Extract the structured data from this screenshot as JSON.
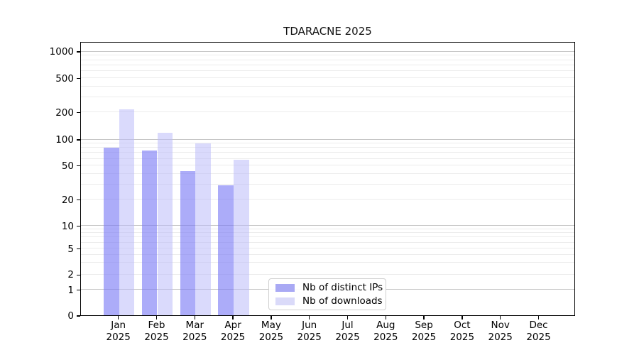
{
  "title": "TDARACNE 2025",
  "chart_data": {
    "type": "bar",
    "title": "TDARACNE 2025",
    "xlabel": "",
    "ylabel": "",
    "categories": [
      {
        "month": "Jan",
        "year": "2025"
      },
      {
        "month": "Feb",
        "year": "2025"
      },
      {
        "month": "Mar",
        "year": "2025"
      },
      {
        "month": "Apr",
        "year": "2025"
      },
      {
        "month": "May",
        "year": "2025"
      },
      {
        "month": "Jun",
        "year": "2025"
      },
      {
        "month": "Jul",
        "year": "2025"
      },
      {
        "month": "Aug",
        "year": "2025"
      },
      {
        "month": "Sep",
        "year": "2025"
      },
      {
        "month": "Oct",
        "year": "2025"
      },
      {
        "month": "Nov",
        "year": "2025"
      },
      {
        "month": "Dec",
        "year": "2025"
      }
    ],
    "series": [
      {
        "name": "Nb of distinct IPs",
        "color": "#a9a9f4",
        "fill": "rgba(124,124,246,0.63)",
        "values": [
          80,
          74,
          43,
          29,
          0,
          0,
          0,
          0,
          0,
          0,
          0,
          0
        ]
      },
      {
        "name": "Nb of downloads",
        "color": "#dadaf9",
        "fill": "rgba(188,188,250,0.55)",
        "values": [
          217,
          118,
          90,
          58,
          0,
          0,
          0,
          0,
          0,
          0,
          0,
          0
        ]
      }
    ],
    "y_axis": {
      "scale": "log-like",
      "ticks": [
        0,
        1,
        2,
        5,
        10,
        20,
        50,
        100,
        200,
        500,
        1000
      ],
      "range": [
        0,
        1200
      ]
    },
    "grid": {
      "major_at": [
        1,
        10,
        100,
        1000
      ],
      "minor": "2-9 per decade"
    },
    "legend_position": "lower center"
  }
}
